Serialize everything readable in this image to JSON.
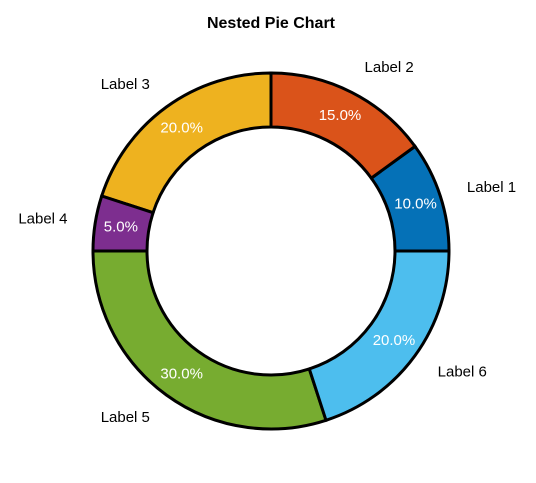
{
  "chart_data": {
    "type": "pie",
    "subtype": "donut",
    "title": "Nested Pie Chart",
    "start_angle_deg": 0,
    "direction": "counterclockwise",
    "edge_color": "#000000",
    "legend": "none",
    "slices": [
      {
        "label": "Label 1",
        "value": 10,
        "pct_label": "10.0%",
        "color": "#0571B7"
      },
      {
        "label": "Label 2",
        "value": 15,
        "pct_label": "15.0%",
        "color": "#DA531A"
      },
      {
        "label": "Label 3",
        "value": 20,
        "pct_label": "20.0%",
        "color": "#EEB21F"
      },
      {
        "label": "Label 4",
        "value": 5,
        "pct_label": "5.0%",
        "color": "#7D2E8F"
      },
      {
        "label": "Label 5",
        "value": 30,
        "pct_label": "30.0%",
        "color": "#77AC30"
      },
      {
        "label": "Label 6",
        "value": 20,
        "pct_label": "20.0%",
        "color": "#4DBEEE"
      }
    ]
  }
}
